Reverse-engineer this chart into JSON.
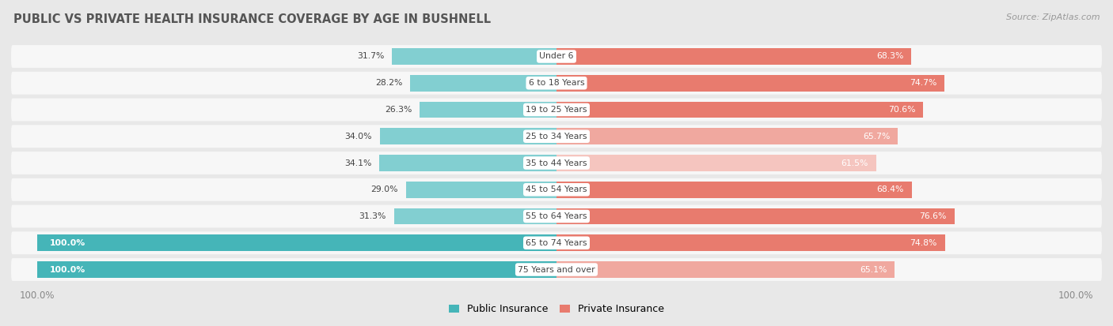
{
  "title": "PUBLIC VS PRIVATE HEALTH INSURANCE COVERAGE BY AGE IN BUSHNELL",
  "source": "Source: ZipAtlas.com",
  "categories": [
    "Under 6",
    "6 to 18 Years",
    "19 to 25 Years",
    "25 to 34 Years",
    "35 to 44 Years",
    "45 to 54 Years",
    "55 to 64 Years",
    "65 to 74 Years",
    "75 Years and over"
  ],
  "public_values": [
    31.7,
    28.2,
    26.3,
    34.0,
    34.1,
    29.0,
    31.3,
    100.0,
    100.0
  ],
  "private_values": [
    68.3,
    74.7,
    70.6,
    65.7,
    61.5,
    68.4,
    76.6,
    74.8,
    65.1
  ],
  "public_color": "#45b5b8",
  "private_color": "#e87b6e",
  "public_color_light": "#82cfd1",
  "private_color_light": "#f0a89f",
  "private_color_lighter": "#f5c5bf",
  "bg_color": "#e8e8e8",
  "bar_bg_color": "#f7f7f7",
  "title_color": "#555555",
  "label_color_dark": "#444444",
  "bar_height": 0.62,
  "max_value": 100.0,
  "legend_public": "Public Insurance",
  "legend_private": "Private Insurance",
  "xlim": 105
}
